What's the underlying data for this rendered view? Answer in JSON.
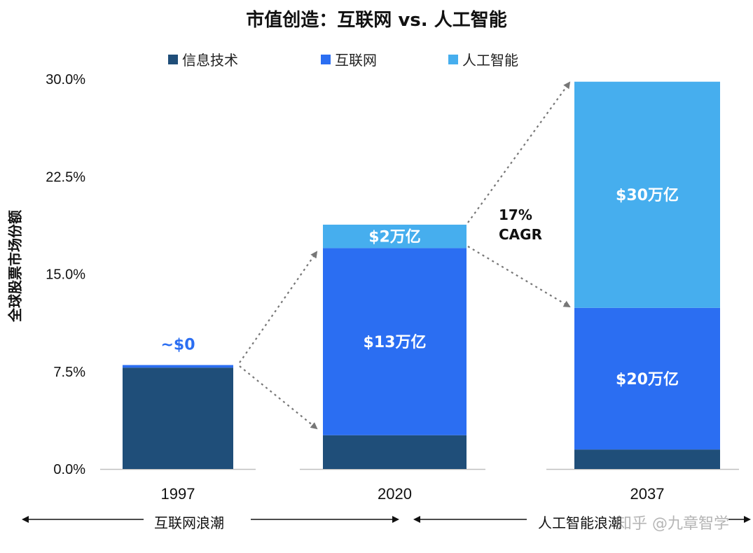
{
  "chart_data": {
    "type": "bar",
    "stacked": true,
    "title": "市值创造：互联网 vs. 人工智能",
    "ylabel": "全球股票市场份额",
    "ylim": [
      0,
      30
    ],
    "yticks": [
      "0.0%",
      "7.5%",
      "15.0%",
      "22.5%",
      "30.0%"
    ],
    "ytick_values": [
      0,
      7.5,
      15,
      22.5,
      30
    ],
    "categories": [
      "1997",
      "2020",
      "2037"
    ],
    "series": [
      {
        "name": "信息技术",
        "color": "#1f4e79",
        "values": [
          7.8,
          2.6,
          1.5
        ]
      },
      {
        "name": "互联网",
        "color": "#2b6ef2",
        "values": [
          0.2,
          14.4,
          10.9
        ]
      },
      {
        "name": "人工智能",
        "color": "#46aeee",
        "values": [
          0,
          1.8,
          17.4
        ]
      }
    ],
    "data_labels": [
      {
        "text": "~$0",
        "category": 0,
        "series": 1,
        "color": "#2b6ef2",
        "position": "above"
      },
      {
        "text": "$2万亿",
        "category": 1,
        "series": 2,
        "color": "#ffffff",
        "position": "center"
      },
      {
        "text": "$13万亿",
        "category": 1,
        "series": 1,
        "color": "#ffffff",
        "position": "center"
      },
      {
        "text": "$30万亿",
        "category": 2,
        "series": 2,
        "color": "#ffffff",
        "position": "center"
      },
      {
        "text": "$20万亿",
        "category": 2,
        "series": 1,
        "color": "#ffffff",
        "position": "center"
      }
    ],
    "annotations": {
      "cagr_line1": "17%",
      "cagr_line2": "CAGR"
    },
    "legend_position": "top",
    "grid": false
  },
  "eras": {
    "internet": "互联网浪潮",
    "ai": "人工智能浪潮"
  },
  "watermark": "知乎 @九章智学"
}
